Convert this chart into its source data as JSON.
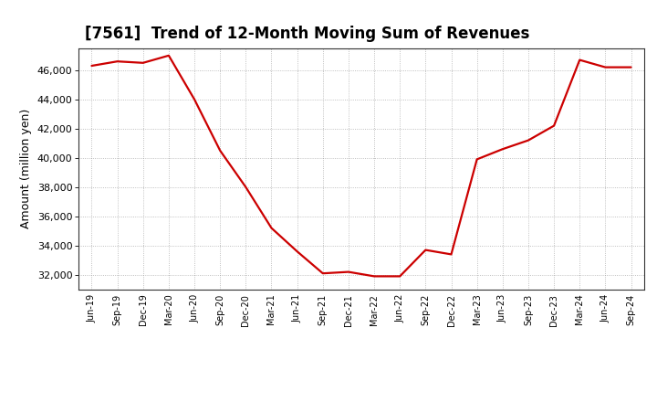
{
  "title": "[7561]  Trend of 12-Month Moving Sum of Revenues",
  "ylabel": "Amount (million yen)",
  "line_color": "#cc0000",
  "background_color": "#ffffff",
  "plot_bg_color": "#ffffff",
  "grid_color": "#999999",
  "x_labels": [
    "Jun-19",
    "Sep-19",
    "Dec-19",
    "Mar-20",
    "Jun-20",
    "Sep-20",
    "Dec-20",
    "Mar-21",
    "Jun-21",
    "Sep-21",
    "Dec-21",
    "Mar-22",
    "Jun-22",
    "Sep-22",
    "Dec-22",
    "Mar-23",
    "Jun-23",
    "Sep-23",
    "Dec-23",
    "Mar-24",
    "Jun-24",
    "Sep-24"
  ],
  "y_values": [
    46300,
    46600,
    46500,
    47000,
    44000,
    40500,
    38000,
    35200,
    33600,
    32100,
    32200,
    31900,
    31900,
    33700,
    33400,
    39900,
    40600,
    41200,
    42200,
    46700,
    46200,
    46200
  ],
  "ylim": [
    31000,
    47500
  ],
  "yticks": [
    32000,
    34000,
    36000,
    38000,
    40000,
    42000,
    44000,
    46000
  ],
  "title_fontsize": 12,
  "ylabel_fontsize": 9,
  "tick_fontsize": 8,
  "xtick_fontsize": 7,
  "line_width": 1.6
}
